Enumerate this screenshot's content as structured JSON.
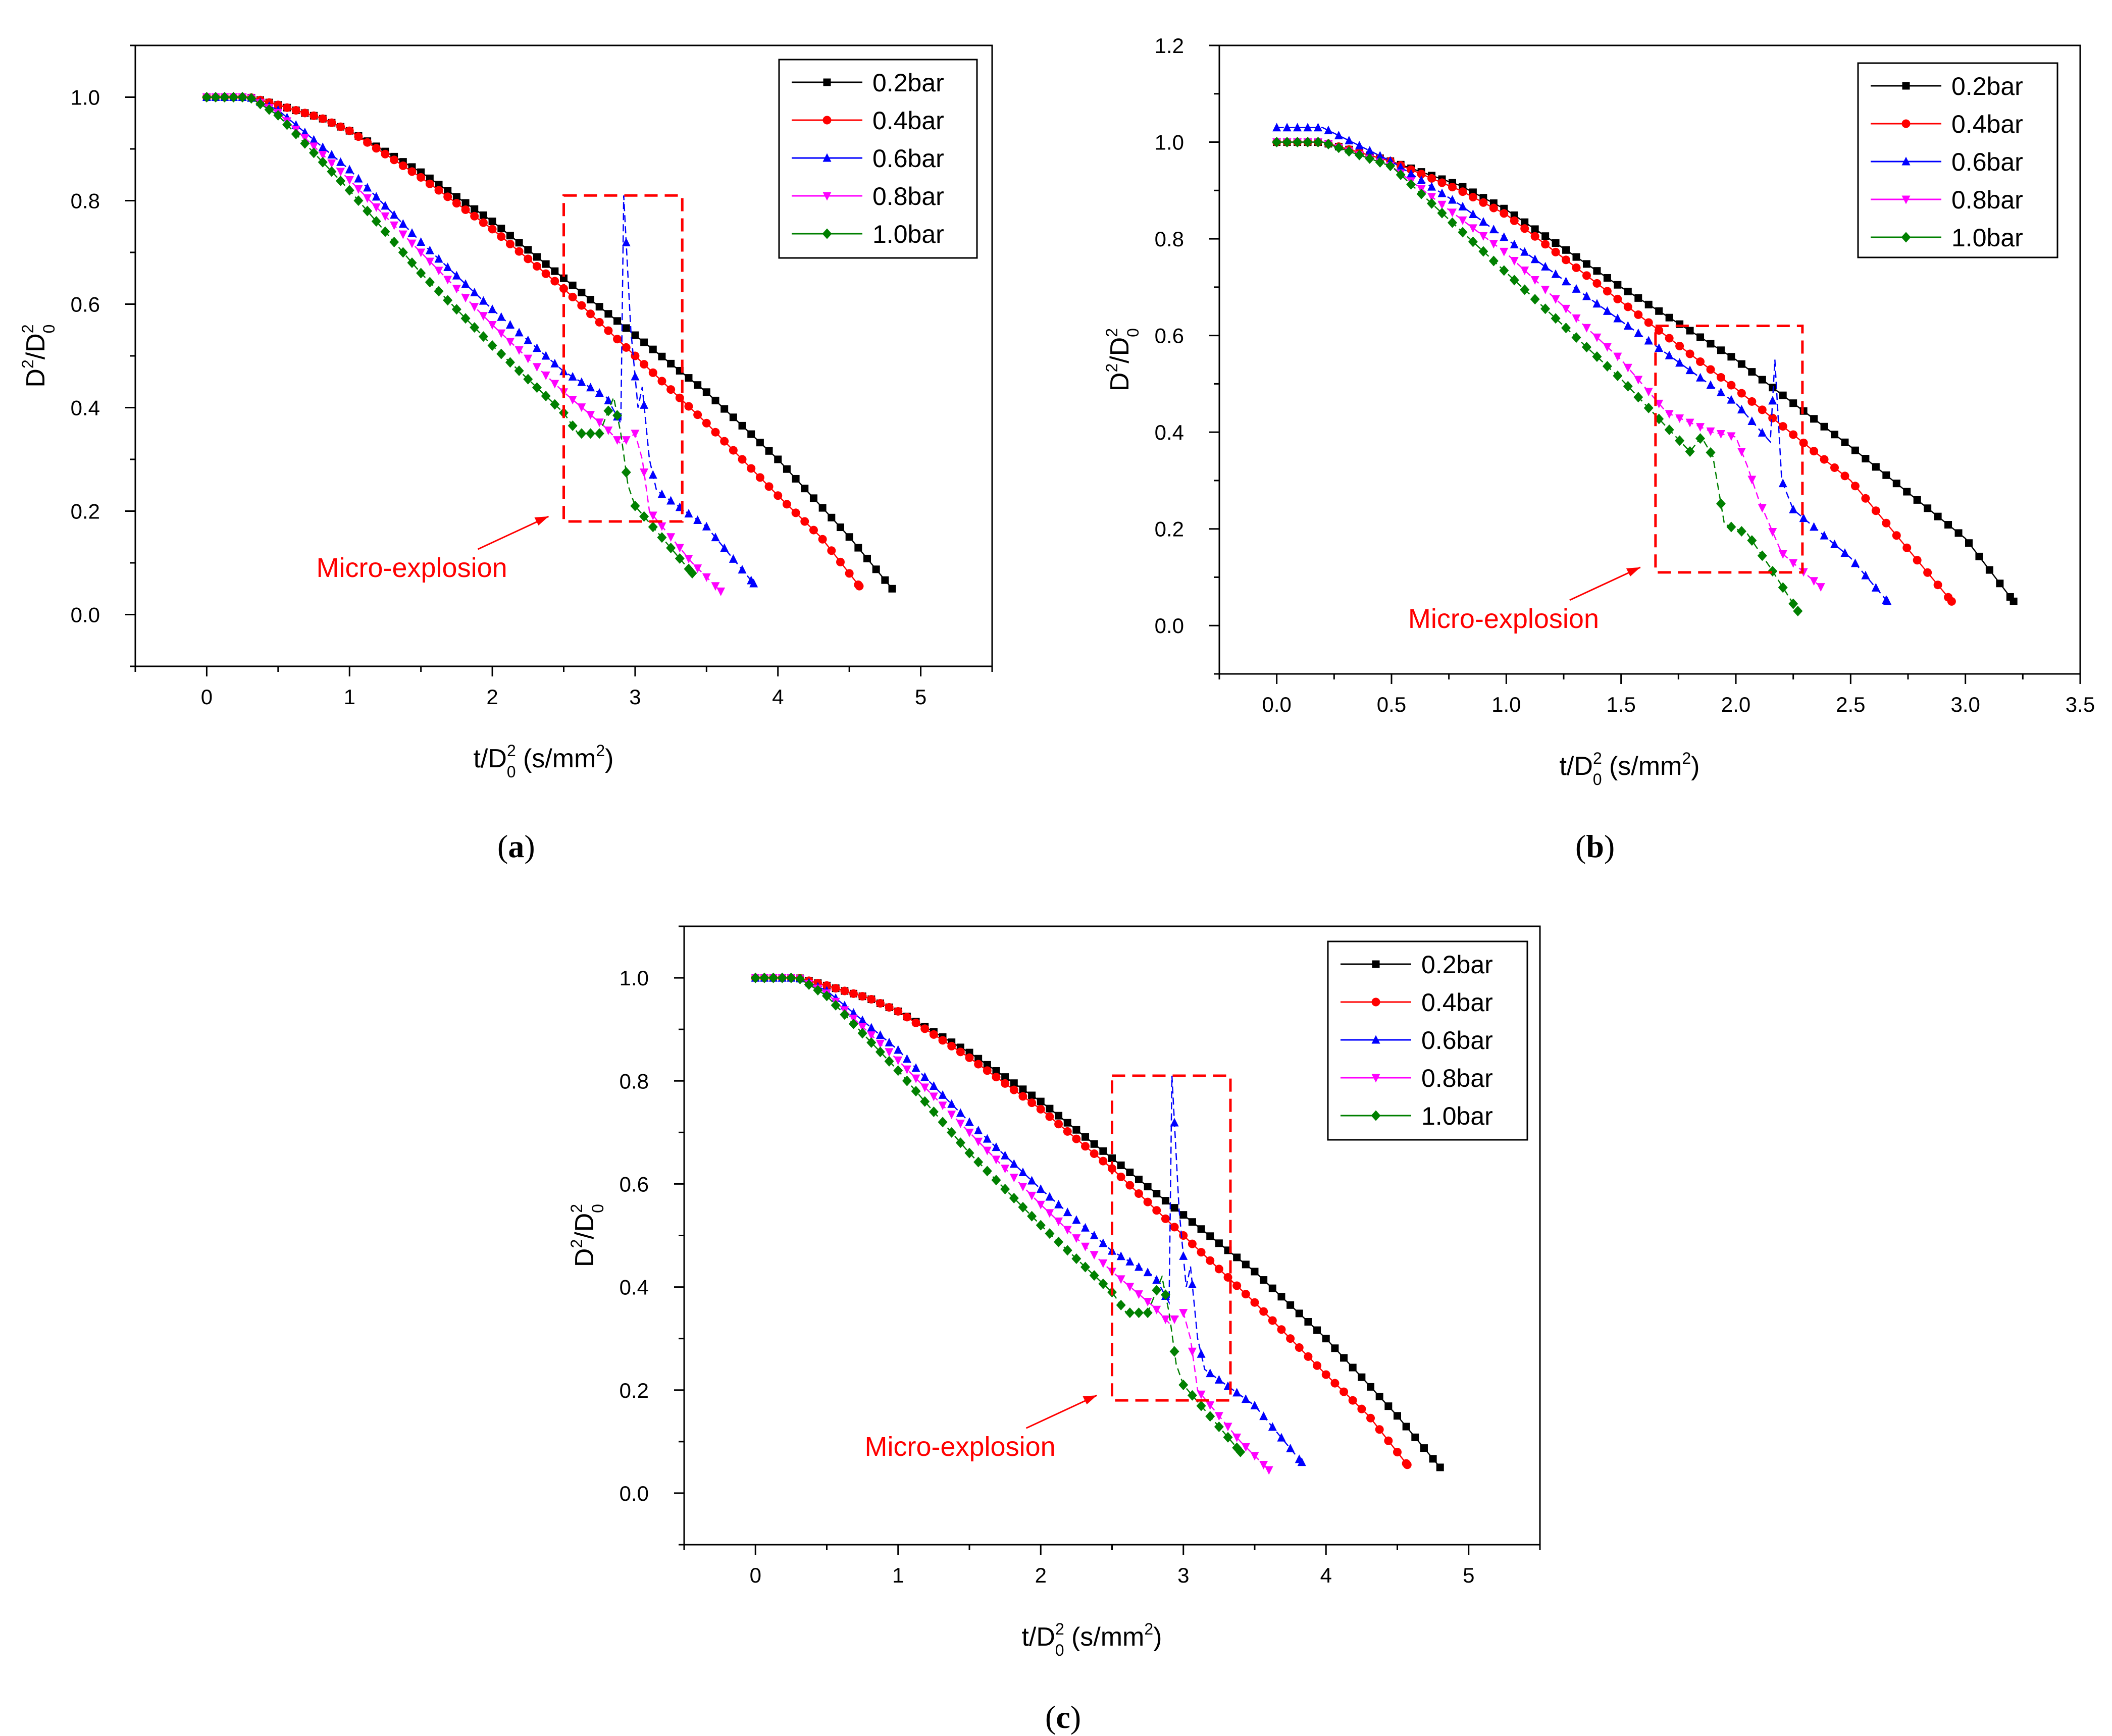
{
  "figure": {
    "captions": [
      {
        "open": "(",
        "letter": "a",
        "close": ")"
      },
      {
        "open": "(",
        "letter": "b",
        "close": ")"
      },
      {
        "open": "(",
        "letter": "c",
        "close": ")"
      }
    ],
    "annotation_text": "Micro-explosion"
  },
  "colors": {
    "0.2bar": "#000000",
    "0.4bar": "#ff0000",
    "0.6bar": "#0000ff",
    "0.8bar": "#ff00ff",
    "1.0bar": "#008000",
    "annotation": "#ff0000"
  },
  "chart_data": [
    {
      "type": "scatter",
      "panel": "a",
      "xlabel": {
        "main": "t/D",
        "sup": "2",
        "sub": "0",
        "unit": " (s/mm",
        "unit_sup": "2",
        "unit_close": ")"
      },
      "ylabel": {
        "a": "D",
        "sup1": "2",
        "b": "/D",
        "sup2": "2",
        "sub": "0"
      },
      "xlim": [
        -0.5,
        5.5
      ],
      "ylim": [
        -0.1,
        1.1
      ],
      "xticks": [
        "0",
        "1",
        "2",
        "3",
        "4",
        "5"
      ],
      "yticks": [
        "0.0",
        "0.2",
        "0.4",
        "0.6",
        "0.8",
        "1.0"
      ],
      "legend": [
        "0.2bar",
        "0.4bar",
        "0.6bar",
        "0.8bar",
        "1.0bar"
      ],
      "micro_box": {
        "x": [
          2.5,
          3.33
        ],
        "y": [
          0.18,
          0.81
        ]
      },
      "annotation_at": [
        2.9,
        0.2
      ],
      "series": [
        {
          "name": "0.2bar",
          "marker": "square",
          "end": 4.8,
          "endY": 0.05,
          "points": [
            [
              0,
              1.0
            ],
            [
              0.3,
              1.0
            ],
            [
              0.5,
              0.985
            ],
            [
              0.8,
              0.96
            ],
            [
              1.0,
              0.935
            ],
            [
              1.5,
              0.855
            ],
            [
              2.0,
              0.76
            ],
            [
              2.5,
              0.65
            ],
            [
              3.0,
              0.54
            ],
            [
              3.5,
              0.43
            ],
            [
              4.0,
              0.3
            ],
            [
              4.5,
              0.15
            ],
            [
              4.8,
              0.05
            ]
          ]
        },
        {
          "name": "0.4bar",
          "marker": "circle",
          "end": 4.57,
          "endY": 0.055,
          "points": [
            [
              0,
              1.0
            ],
            [
              0.3,
              1.0
            ],
            [
              0.5,
              0.985
            ],
            [
              0.8,
              0.96
            ],
            [
              1.0,
              0.935
            ],
            [
              1.5,
              0.845
            ],
            [
              2.0,
              0.745
            ],
            [
              2.5,
              0.63
            ],
            [
              3.0,
              0.5
            ],
            [
              3.5,
              0.37
            ],
            [
              4.0,
              0.23
            ],
            [
              4.3,
              0.15
            ],
            [
              4.57,
              0.055
            ]
          ]
        },
        {
          "name": "0.6bar",
          "marker": "triangle-up",
          "end": 3.83,
          "endY": 0.06,
          "points": [
            [
              0,
              1.0
            ],
            [
              0.3,
              1.0
            ],
            [
              0.5,
              0.975
            ],
            [
              1.0,
              0.86
            ],
            [
              1.5,
              0.72
            ],
            [
              2.0,
              0.59
            ],
            [
              2.5,
              0.47
            ],
            [
              2.8,
              0.42
            ],
            [
              2.9,
              0.37
            ],
            [
              2.92,
              0.81
            ],
            [
              2.97,
              0.55
            ],
            [
              3.02,
              0.4
            ],
            [
              3.05,
              0.44
            ],
            [
              3.1,
              0.3
            ],
            [
              3.15,
              0.24
            ],
            [
              3.5,
              0.17
            ],
            [
              3.83,
              0.06
            ]
          ]
        },
        {
          "name": "0.8bar",
          "marker": "triangle-down",
          "end": 3.6,
          "endY": 0.045,
          "points": [
            [
              0,
              1.0
            ],
            [
              0.3,
              1.0
            ],
            [
              0.5,
              0.97
            ],
            [
              1.0,
              0.84
            ],
            [
              1.5,
              0.7
            ],
            [
              2.0,
              0.56
            ],
            [
              2.5,
              0.43
            ],
            [
              2.8,
              0.36
            ],
            [
              2.9,
              0.33
            ],
            [
              3.0,
              0.35
            ],
            [
              3.05,
              0.3
            ],
            [
              3.1,
              0.2
            ],
            [
              3.4,
              0.1
            ],
            [
              3.6,
              0.045
            ]
          ]
        },
        {
          "name": "1.0bar",
          "marker": "diamond",
          "end": 3.4,
          "endY": 0.08,
          "points": [
            [
              0,
              1.0
            ],
            [
              0.3,
              1.0
            ],
            [
              0.5,
              0.965
            ],
            [
              1.0,
              0.82
            ],
            [
              1.5,
              0.66
            ],
            [
              2.0,
              0.52
            ],
            [
              2.5,
              0.39
            ],
            [
              2.6,
              0.35
            ],
            [
              2.75,
              0.35
            ],
            [
              2.85,
              0.42
            ],
            [
              2.9,
              0.35
            ],
            [
              2.95,
              0.25
            ],
            [
              3.0,
              0.21
            ],
            [
              3.4,
              0.08
            ]
          ]
        }
      ]
    },
    {
      "type": "scatter",
      "panel": "b",
      "xlabel": {
        "main": "t/D",
        "sup": "2",
        "sub": "0",
        "unit": " (s/mm",
        "unit_sup": "2",
        "unit_close": ")"
      },
      "ylabel": {
        "a": "D",
        "sup1": "2",
        "b": "/D",
        "sup2": "2",
        "sub": "0"
      },
      "xlim": [
        -0.25,
        3.5
      ],
      "ylim": [
        -0.1,
        1.2
      ],
      "xticks": [
        "0.0",
        "0.5",
        "1.0",
        "1.5",
        "2.0",
        "2.5",
        "3.0",
        "3.5"
      ],
      "yticks": [
        "0.0",
        "0.2",
        "0.4",
        "0.6",
        "0.8",
        "1.0",
        "1.2"
      ],
      "legend": [
        "0.2bar",
        "0.4bar",
        "0.6bar",
        "0.8bar",
        "1.0bar"
      ],
      "micro_box": {
        "x": [
          1.65,
          2.29
        ],
        "y": [
          0.11,
          0.62
        ]
      },
      "annotation_at": [
        1.8,
        0.13
      ],
      "series": [
        {
          "name": "0.2bar",
          "marker": "square",
          "end": 3.21,
          "endY": 0.05,
          "points": [
            [
              0,
              1.0
            ],
            [
              0.2,
              1.0
            ],
            [
              0.5,
              0.96
            ],
            [
              0.8,
              0.91
            ],
            [
              1.0,
              0.86
            ],
            [
              1.5,
              0.7
            ],
            [
              2.0,
              0.55
            ],
            [
              2.5,
              0.37
            ],
            [
              3.0,
              0.18
            ],
            [
              3.21,
              0.05
            ]
          ]
        },
        {
          "name": "0.4bar",
          "marker": "circle",
          "end": 2.94,
          "endY": 0.05,
          "points": [
            [
              0,
              1.0
            ],
            [
              0.2,
              1.0
            ],
            [
              0.5,
              0.96
            ],
            [
              0.8,
              0.9
            ],
            [
              1.0,
              0.85
            ],
            [
              1.5,
              0.67
            ],
            [
              2.0,
              0.49
            ],
            [
              2.5,
              0.3
            ],
            [
              2.94,
              0.05
            ]
          ]
        },
        {
          "name": "0.6bar",
          "marker": "triangle-up",
          "end": 2.66,
          "endY": 0.05,
          "points": [
            [
              0,
              1.03
            ],
            [
              0.2,
              1.03
            ],
            [
              0.5,
              0.96
            ],
            [
              0.8,
              0.87
            ],
            [
              1.0,
              0.8
            ],
            [
              1.5,
              0.63
            ],
            [
              2.0,
              0.46
            ],
            [
              2.15,
              0.38
            ],
            [
              2.17,
              0.55
            ],
            [
              2.2,
              0.3
            ],
            [
              2.25,
              0.24
            ],
            [
              2.5,
              0.14
            ],
            [
              2.66,
              0.05
            ]
          ]
        },
        {
          "name": "0.8bar",
          "marker": "triangle-down",
          "end": 2.37,
          "endY": 0.08,
          "points": [
            [
              0,
              1.0
            ],
            [
              0.2,
              1.0
            ],
            [
              0.5,
              0.95
            ],
            [
              1.0,
              0.77
            ],
            [
              1.5,
              0.55
            ],
            [
              1.7,
              0.44
            ],
            [
              1.9,
              0.4
            ],
            [
              2.0,
              0.39
            ],
            [
              2.05,
              0.33
            ],
            [
              2.1,
              0.26
            ],
            [
              2.2,
              0.15
            ],
            [
              2.37,
              0.08
            ]
          ]
        },
        {
          "name": "1.0bar",
          "marker": "diamond",
          "end": 2.27,
          "endY": 0.03,
          "points": [
            [
              0,
              1.0
            ],
            [
              0.2,
              1.0
            ],
            [
              0.5,
              0.95
            ],
            [
              1.0,
              0.73
            ],
            [
              1.5,
              0.51
            ],
            [
              1.7,
              0.41
            ],
            [
              1.8,
              0.36
            ],
            [
              1.85,
              0.39
            ],
            [
              1.9,
              0.35
            ],
            [
              1.95,
              0.21
            ],
            [
              2.05,
              0.19
            ],
            [
              2.15,
              0.12
            ],
            [
              2.27,
              0.03
            ]
          ]
        }
      ]
    },
    {
      "type": "scatter",
      "panel": "c",
      "xlabel": {
        "main": "t/D",
        "sup": "2",
        "sub": "0",
        "unit": " (s/mm",
        "unit_sup": "2",
        "unit_close": ")"
      },
      "ylabel": {
        "a": "D",
        "sup1": "2",
        "b": "/D",
        "sup2": "2",
        "sub": "0"
      },
      "xlim": [
        -0.5,
        5.5
      ],
      "ylim": [
        -0.1,
        1.1
      ],
      "xticks": [
        "0",
        "1",
        "2",
        "3",
        "4",
        "5"
      ],
      "yticks": [
        "0.0",
        "0.2",
        "0.4",
        "0.6",
        "0.8",
        "1.0"
      ],
      "legend": [
        "0.2bar",
        "0.4bar",
        "0.6bar",
        "0.8bar",
        "1.0bar"
      ],
      "micro_box": {
        "x": [
          2.5,
          3.33
        ],
        "y": [
          0.18,
          0.81
        ]
      },
      "annotation_at": [
        2.9,
        0.2
      ],
      "series": [
        {
          "name": "0.2bar",
          "marker": "square",
          "end": 4.8,
          "endY": 0.05,
          "points": [
            [
              0,
              1.0
            ],
            [
              0.3,
              1.0
            ],
            [
              0.5,
              0.985
            ],
            [
              0.8,
              0.96
            ],
            [
              1.0,
              0.935
            ],
            [
              1.5,
              0.855
            ],
            [
              2.0,
              0.76
            ],
            [
              2.5,
              0.65
            ],
            [
              3.0,
              0.54
            ],
            [
              3.5,
              0.43
            ],
            [
              4.0,
              0.3
            ],
            [
              4.5,
              0.15
            ],
            [
              4.8,
              0.05
            ]
          ]
        },
        {
          "name": "0.4bar",
          "marker": "circle",
          "end": 4.57,
          "endY": 0.055,
          "points": [
            [
              0,
              1.0
            ],
            [
              0.3,
              1.0
            ],
            [
              0.5,
              0.985
            ],
            [
              0.8,
              0.96
            ],
            [
              1.0,
              0.935
            ],
            [
              1.5,
              0.845
            ],
            [
              2.0,
              0.745
            ],
            [
              2.5,
              0.63
            ],
            [
              3.0,
              0.5
            ],
            [
              3.5,
              0.37
            ],
            [
              4.0,
              0.23
            ],
            [
              4.3,
              0.15
            ],
            [
              4.57,
              0.055
            ]
          ]
        },
        {
          "name": "0.6bar",
          "marker": "triangle-up",
          "end": 3.83,
          "endY": 0.06,
          "points": [
            [
              0,
              1.0
            ],
            [
              0.3,
              1.0
            ],
            [
              0.5,
              0.975
            ],
            [
              1.0,
              0.86
            ],
            [
              1.5,
              0.72
            ],
            [
              2.0,
              0.59
            ],
            [
              2.5,
              0.47
            ],
            [
              2.8,
              0.42
            ],
            [
              2.9,
              0.37
            ],
            [
              2.92,
              0.81
            ],
            [
              2.97,
              0.55
            ],
            [
              3.02,
              0.4
            ],
            [
              3.05,
              0.44
            ],
            [
              3.1,
              0.3
            ],
            [
              3.15,
              0.24
            ],
            [
              3.5,
              0.17
            ],
            [
              3.83,
              0.06
            ]
          ]
        },
        {
          "name": "0.8bar",
          "marker": "triangle-down",
          "end": 3.6,
          "endY": 0.045,
          "points": [
            [
              0,
              1.0
            ],
            [
              0.3,
              1.0
            ],
            [
              0.5,
              0.97
            ],
            [
              1.0,
              0.84
            ],
            [
              1.5,
              0.7
            ],
            [
              2.0,
              0.56
            ],
            [
              2.5,
              0.43
            ],
            [
              2.8,
              0.36
            ],
            [
              2.9,
              0.33
            ],
            [
              3.0,
              0.35
            ],
            [
              3.05,
              0.3
            ],
            [
              3.1,
              0.2
            ],
            [
              3.4,
              0.1
            ],
            [
              3.6,
              0.045
            ]
          ]
        },
        {
          "name": "1.0bar",
          "marker": "diamond",
          "end": 3.4,
          "endY": 0.08,
          "points": [
            [
              0,
              1.0
            ],
            [
              0.3,
              1.0
            ],
            [
              0.5,
              0.965
            ],
            [
              1.0,
              0.82
            ],
            [
              1.5,
              0.66
            ],
            [
              2.0,
              0.52
            ],
            [
              2.5,
              0.39
            ],
            [
              2.6,
              0.35
            ],
            [
              2.75,
              0.35
            ],
            [
              2.85,
              0.42
            ],
            [
              2.9,
              0.35
            ],
            [
              2.95,
              0.25
            ],
            [
              3.0,
              0.21
            ],
            [
              3.4,
              0.08
            ]
          ]
        }
      ]
    }
  ]
}
